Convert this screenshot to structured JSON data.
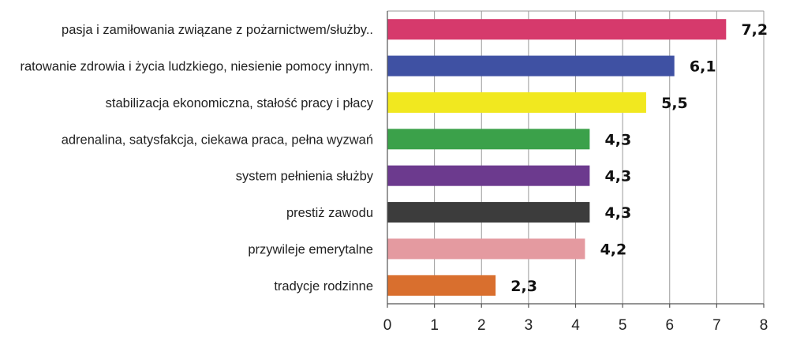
{
  "chart_data": {
    "type": "bar",
    "orientation": "horizontal",
    "title": "",
    "xlabel": "",
    "ylabel": "",
    "xlim": [
      0,
      8
    ],
    "x_ticks": [
      "0",
      "1",
      "2",
      "3",
      "4",
      "5",
      "6",
      "7",
      "8"
    ],
    "grid": true,
    "legend": "none",
    "categories": [
      "pasja i zamiłowania związane z pożarnictwem/służby..",
      "ratowanie zdrowia i życia ludzkiego, niesienie pomocy innym.",
      "stabilizacja ekonomiczna, stałość pracy i płacy",
      "adrenalina, satysfakcja, ciekawa praca, pełna wyzwań",
      "system pełnienia służby",
      "prestiż zawodu",
      "przywileje emerytalne",
      "tradycje rodzinne"
    ],
    "values": [
      7.2,
      6.1,
      5.5,
      4.3,
      4.3,
      4.3,
      4.2,
      2.3
    ],
    "value_labels": [
      "7,2",
      "6,1",
      "5,5",
      "4,3",
      "4,3",
      "4,3",
      "4,2",
      "2,3"
    ],
    "colors": [
      "#d63a6c",
      "#3f51a3",
      "#f1e81f",
      "#3ba14a",
      "#6c3a8e",
      "#3c3c3c",
      "#e49aa0",
      "#d96f2e"
    ]
  }
}
